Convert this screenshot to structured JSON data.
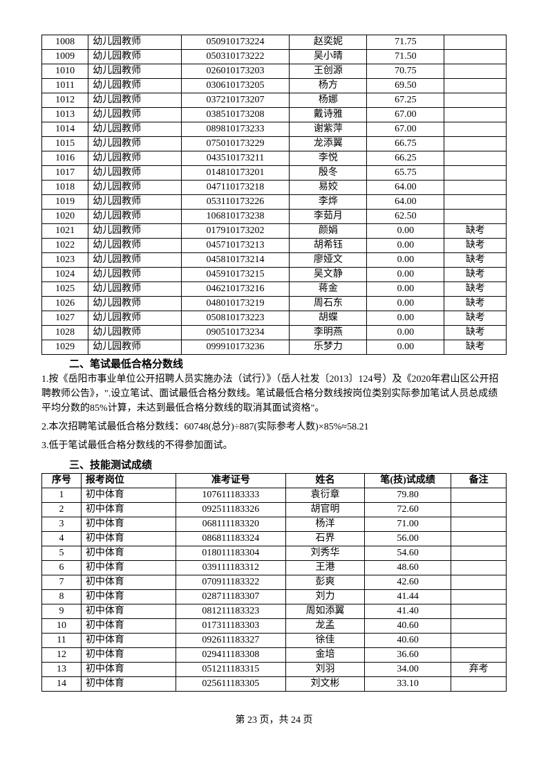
{
  "table1": {
    "rows": [
      [
        "1008",
        "幼儿园教师",
        "050910173224",
        "赵奕妮",
        "71.75",
        ""
      ],
      [
        "1009",
        "幼儿园教师",
        "050310173222",
        "吴小晴",
        "71.50",
        ""
      ],
      [
        "1010",
        "幼儿园教师",
        "026010173203",
        "王创源",
        "70.75",
        ""
      ],
      [
        "1011",
        "幼儿园教师",
        "030610173205",
        "杨方",
        "69.50",
        ""
      ],
      [
        "1012",
        "幼儿园教师",
        "037210173207",
        "杨娜",
        "67.25",
        ""
      ],
      [
        "1013",
        "幼儿园教师",
        "038510173208",
        "戴诗雅",
        "67.00",
        ""
      ],
      [
        "1014",
        "幼儿园教师",
        "089810173233",
        "谢紫萍",
        "67.00",
        ""
      ],
      [
        "1015",
        "幼儿园教师",
        "075010173229",
        "龙添翼",
        "66.75",
        ""
      ],
      [
        "1016",
        "幼儿园教师",
        "043510173211",
        "李悦",
        "66.25",
        ""
      ],
      [
        "1017",
        "幼儿园教师",
        "014810173201",
        "殷冬",
        "65.75",
        ""
      ],
      [
        "1018",
        "幼儿园教师",
        "047110173218",
        "易姣",
        "64.00",
        ""
      ],
      [
        "1019",
        "幼儿园教师",
        "053110173226",
        "李烨",
        "64.00",
        ""
      ],
      [
        "1020",
        "幼儿园教师",
        "106810173238",
        "李茹月",
        "62.50",
        ""
      ],
      [
        "1021",
        "幼儿园教师",
        "017910173202",
        "颜娟",
        "0.00",
        "缺考"
      ],
      [
        "1022",
        "幼儿园教师",
        "045710173213",
        "胡希钰",
        "0.00",
        "缺考"
      ],
      [
        "1023",
        "幼儿园教师",
        "045810173214",
        "廖娅文",
        "0.00",
        "缺考"
      ],
      [
        "1024",
        "幼儿园教师",
        "045910173215",
        "吴文静",
        "0.00",
        "缺考"
      ],
      [
        "1025",
        "幼儿园教师",
        "046210173216",
        "蒋金",
        "0.00",
        "缺考"
      ],
      [
        "1026",
        "幼儿园教师",
        "048010173219",
        "周石东",
        "0.00",
        "缺考"
      ],
      [
        "1027",
        "幼儿园教师",
        "050810173223",
        "胡蝶",
        "0.00",
        "缺考"
      ],
      [
        "1028",
        "幼儿园教师",
        "090510173234",
        "李明燕",
        "0.00",
        "缺考"
      ],
      [
        "1029",
        "幼儿园教师",
        "099910173236",
        "乐梦力",
        "0.00",
        "缺考"
      ]
    ]
  },
  "section2_title": "二、笔试最低合格分数线",
  "para1": "1.按《岳阳市事业单位公开招聘人员实施办法（试行）》（岳人社发〔2013〕124号）及《2020年君山区公开招聘教师公告》，\".设立笔试、面试最低合格分数线。笔试最低合格分数线按岗位类别实际参加笔试人员总成绩平均分数的85%计算，未达到最低合格分数线的取消其面试资格\"。",
  "para2": "2.本次招聘笔试最低合格分数线：60748(总分)÷887(实际参考人数)×85%≈58.21",
  "para3": "3.低于笔试最低合格分数线的不得参加面试。",
  "section3_title": "三、技能测试成绩",
  "table2": {
    "headers": [
      "序号",
      "报考岗位",
      "准考证号",
      "姓名",
      "笔(技)试成绩",
      "备注"
    ],
    "rows": [
      [
        "1",
        "初中体育",
        "107611183333",
        "袁衍章",
        "79.80",
        ""
      ],
      [
        "2",
        "初中体育",
        "092511183326",
        "胡官明",
        "72.60",
        ""
      ],
      [
        "3",
        "初中体育",
        "068111183320",
        "杨洋",
        "71.00",
        ""
      ],
      [
        "4",
        "初中体育",
        "086811183324",
        "石界",
        "56.00",
        ""
      ],
      [
        "5",
        "初中体育",
        "018011183304",
        "刘秀华",
        "54.60",
        ""
      ],
      [
        "6",
        "初中体育",
        "039111183312",
        "王港",
        "48.60",
        ""
      ],
      [
        "7",
        "初中体育",
        "070911183322",
        "彭爽",
        "42.60",
        ""
      ],
      [
        "8",
        "初中体育",
        "028711183307",
        "刘力",
        "41.44",
        ""
      ],
      [
        "9",
        "初中体育",
        "081211183323",
        "周如添翼",
        "41.40",
        ""
      ],
      [
        "10",
        "初中体育",
        "017311183303",
        "龙孟",
        "40.60",
        ""
      ],
      [
        "11",
        "初中体育",
        "092611183327",
        "徐佳",
        "40.60",
        ""
      ],
      [
        "12",
        "初中体育",
        "029411183308",
        "金培",
        "36.60",
        ""
      ],
      [
        "13",
        "初中体育",
        "051211183315",
        "刘羽",
        "34.00",
        "弃考"
      ],
      [
        "14",
        "初中体育",
        "025611183305",
        "刘文彬",
        "33.10",
        ""
      ]
    ]
  },
  "footer": "第 23 页，共 24 页"
}
